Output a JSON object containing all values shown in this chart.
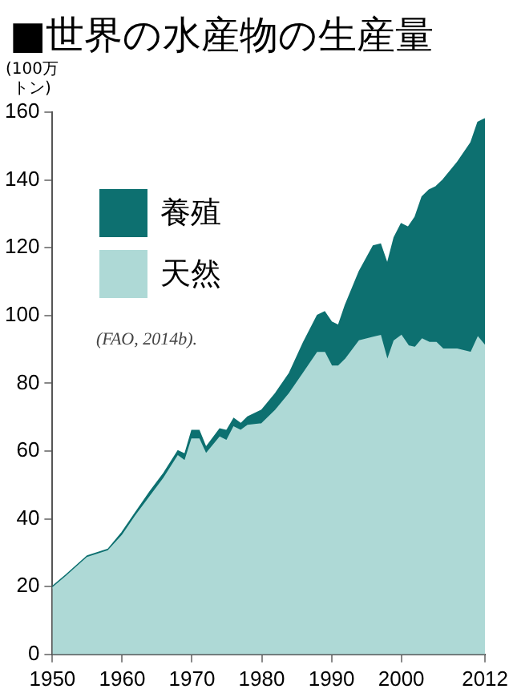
{
  "chart_data": {
    "type": "area",
    "title": "■世界の水産物の生産量",
    "ylabel": "(100万トン)",
    "stacked": true,
    "legend": "top left",
    "grid": false,
    "x": [
      1950,
      1952,
      1955,
      1958,
      1960,
      1962,
      1964,
      1966,
      1968,
      1969,
      1970,
      1971,
      1972,
      1974,
      1975,
      1976,
      1977,
      1978,
      1980,
      1982,
      1984,
      1986,
      1988,
      1989,
      1990,
      1991,
      1992,
      1994,
      1996,
      1997,
      1998,
      1999,
      2000,
      2001,
      2002,
      2003,
      2004,
      2005,
      2006,
      2008,
      2010,
      2011,
      2012
    ],
    "xlim": [
      1950,
      2012
    ],
    "xticks": [
      1950,
      1960,
      1970,
      1980,
      1990,
      2000,
      2012
    ],
    "ylim": [
      0,
      160
    ],
    "yticks": [
      0,
      20,
      40,
      60,
      80,
      100,
      120,
      140,
      160
    ],
    "series": [
      {
        "name": "天然",
        "color": "#aed9d6",
        "values": [
          19.5,
          23,
          28.5,
          30.5,
          35,
          41,
          46.5,
          52,
          58.5,
          57,
          63.5,
          63.5,
          59,
          64,
          63,
          67,
          66,
          67.5,
          68,
          72,
          77,
          83,
          89,
          89,
          85,
          85,
          87,
          92.5,
          93.5,
          94,
          86.5,
          92.5,
          94,
          91,
          90.5,
          93,
          92,
          92,
          90,
          90,
          89,
          93.5,
          91
        ]
      },
      {
        "name": "養殖",
        "color": "#0d7070",
        "values": [
          0.5,
          0.5,
          0.5,
          0.5,
          1,
          1,
          1.5,
          1.5,
          1.5,
          2,
          2.5,
          2.5,
          2,
          2.5,
          3,
          2.5,
          2,
          2.5,
          4,
          5,
          6,
          9,
          11,
          12,
          13,
          12,
          16,
          20.5,
          27,
          27,
          28.5,
          30.5,
          33,
          35,
          38.5,
          42,
          45,
          46,
          50,
          55,
          62,
          63.5,
          67
        ]
      }
    ],
    "annotations": [
      "(FAO, 2014b)."
    ]
  }
}
